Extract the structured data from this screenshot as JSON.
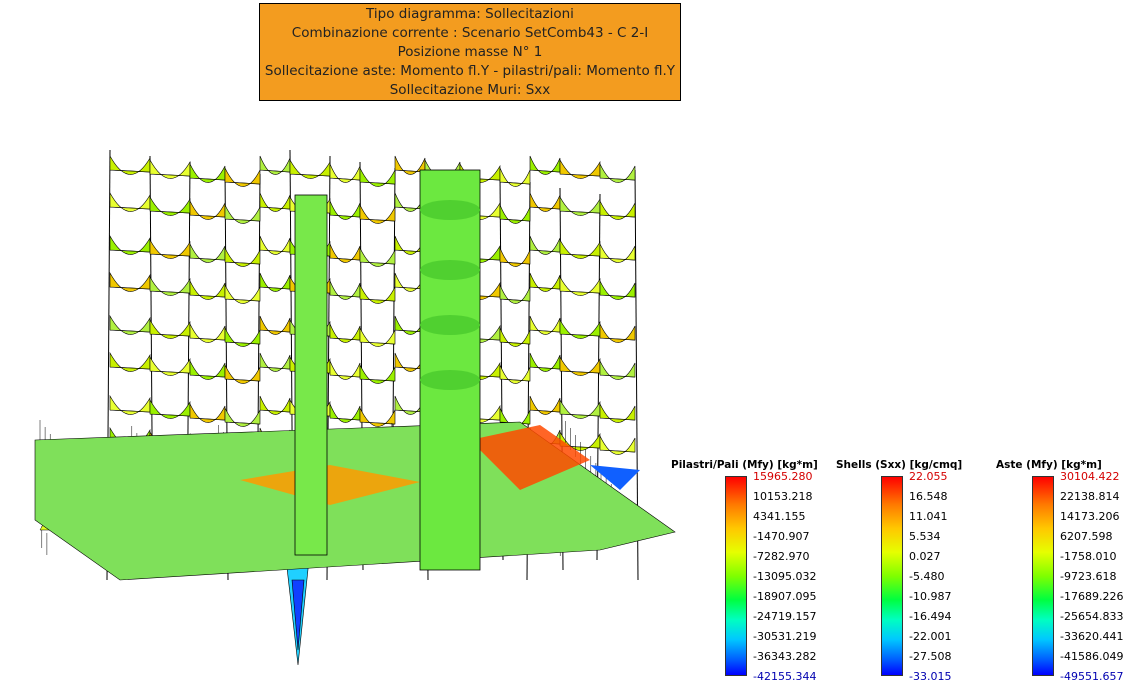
{
  "header": {
    "lines": [
      "Tipo diagramma: Sollecitazioni",
      "Combinazione corrente : Scenario SetComb43 - C 2-I",
      "Posizione masse N° 1",
      "Sollecitazione aste: Momento fl.Y - pilastri/pali: Momento fl.Y",
      "Sollecitazione Muri: Sxx"
    ],
    "background": "#f39c1f"
  },
  "legends": [
    {
      "title": "Pilastri/Pali (Mfy) [kg*m]",
      "values": [
        "15965.280",
        "10153.218",
        "4341.155",
        "-1470.907",
        "-7282.970",
        "-13095.032",
        "-18907.095",
        "-24719.157",
        "-30531.219",
        "-36343.282",
        "-42155.344"
      ]
    },
    {
      "title": "Shells (Sxx) [kg/cmq]",
      "values": [
        "22.055",
        "16.548",
        "11.041",
        "5.534",
        "0.027",
        "-5.480",
        "-10.987",
        "-16.494",
        "-22.001",
        "-27.508",
        "-33.015"
      ]
    },
    {
      "title": "Aste (Mfy) [kg*m]",
      "values": [
        "30104.422",
        "22138.814",
        "14173.206",
        "6207.598",
        "-1758.010",
        "-9723.618",
        "-17689.226",
        "-25654.833",
        "-33620.441",
        "-41586.049",
        "-49551.657"
      ]
    }
  ],
  "scale_colors": {
    "max": "#ff0000",
    "mid": "#80ff00",
    "min": "#0000ff",
    "max_text": "#d40000",
    "min_text": "#0000b0"
  }
}
